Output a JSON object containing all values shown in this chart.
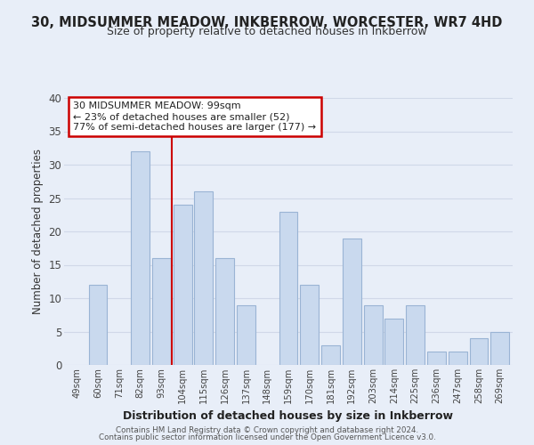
{
  "title": "30, MIDSUMMER MEADOW, INKBERROW, WORCESTER, WR7 4HD",
  "subtitle": "Size of property relative to detached houses in Inkberrow",
  "xlabel": "Distribution of detached houses by size in Inkberrow",
  "ylabel": "Number of detached properties",
  "footer_line1": "Contains HM Land Registry data © Crown copyright and database right 2024.",
  "footer_line2": "Contains public sector information licensed under the Open Government Licence v3.0.",
  "bin_labels": [
    "49sqm",
    "60sqm",
    "71sqm",
    "82sqm",
    "93sqm",
    "104sqm",
    "115sqm",
    "126sqm",
    "137sqm",
    "148sqm",
    "159sqm",
    "170sqm",
    "181sqm",
    "192sqm",
    "203sqm",
    "214sqm",
    "225sqm",
    "236sqm",
    "247sqm",
    "258sqm",
    "269sqm"
  ],
  "bar_values": [
    0,
    12,
    0,
    32,
    16,
    24,
    26,
    16,
    9,
    0,
    23,
    12,
    3,
    19,
    9,
    7,
    9,
    2,
    2,
    4,
    5
  ],
  "bar_color": "#c9d9ee",
  "bar_edge_color": "#9ab4d4",
  "grid_color": "#d0d8e8",
  "vline_color": "#cc0000",
  "annotation_title": "30 MIDSUMMER MEADOW: 99sqm",
  "annotation_line1": "← 23% of detached houses are smaller (52)",
  "annotation_line2": "77% of semi-detached houses are larger (177) →",
  "annotation_box_color": "#ffffff",
  "annotation_box_edge": "#cc0000",
  "ylim": [
    0,
    40
  ],
  "yticks": [
    0,
    5,
    10,
    15,
    20,
    25,
    30,
    35,
    40
  ],
  "background_color": "#e8eef8"
}
